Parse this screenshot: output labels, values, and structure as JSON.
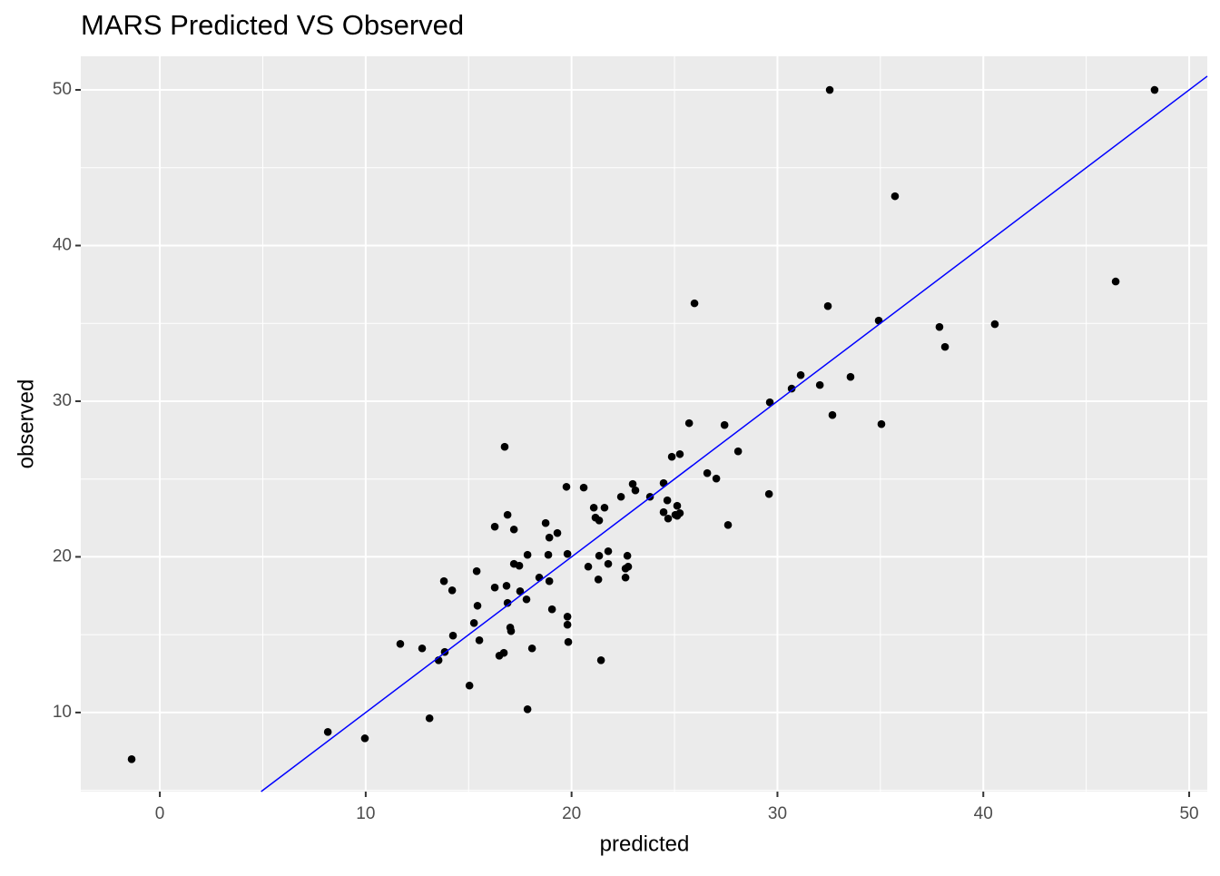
{
  "chart_data": {
    "type": "scatter",
    "title": "MARS Predicted VS Observed",
    "x_label": "predicted",
    "y_label": "observed",
    "series": [
      {
        "color": "#000000",
        "x": [
          -1.37,
          8.16,
          9.96,
          11.68,
          12.74,
          13.1,
          13.54,
          13.84,
          13.8,
          14.2,
          14.24,
          15.04,
          15.26,
          15.39,
          15.43,
          15.52,
          16.27,
          16.27,
          16.49,
          16.71,
          16.75,
          16.84,
          16.89,
          16.89,
          17.02,
          17.06,
          17.2,
          17.2,
          17.46,
          17.5,
          17.81,
          17.86,
          17.86,
          18.08,
          18.43,
          18.74,
          18.87,
          18.92,
          18.92,
          19.05,
          19.31,
          19.75,
          19.8,
          19.8,
          19.8,
          19.84,
          20.59,
          20.81,
          21.08,
          21.16,
          21.34,
          21.34,
          21.3,
          21.43,
          21.6,
          21.78,
          21.78,
          22.4,
          22.62,
          22.62,
          22.71,
          22.75,
          22.97,
          23.1,
          23.81,
          24.47,
          24.47,
          24.65,
          24.69,
          24.87,
          25.04,
          25.13,
          25.13,
          25.26,
          25.26,
          25.71,
          25.97,
          26.59,
          27.03,
          27.43,
          27.6,
          28.09,
          29.59,
          29.63,
          30.69,
          31.13,
          32.06,
          32.45,
          32.54,
          32.67,
          33.55,
          34.92,
          35.05,
          35.71,
          37.87,
          38.14,
          40.56,
          46.43,
          48.32
        ],
        "values": [
          7.0,
          8.75,
          8.34,
          14.41,
          14.12,
          9.63,
          13.36,
          13.89,
          18.44,
          17.85,
          14.94,
          11.73,
          15.75,
          19.08,
          16.86,
          14.64,
          21.94,
          18.03,
          13.65,
          13.83,
          27.07,
          18.14,
          22.7,
          17.04,
          15.46,
          15.23,
          21.76,
          19.55,
          19.43,
          17.79,
          17.27,
          20.13,
          10.21,
          14.12,
          18.67,
          22.17,
          20.13,
          21.24,
          18.44,
          16.63,
          21.53,
          24.5,
          20.19,
          16.16,
          15.64,
          14.53,
          24.45,
          19.37,
          23.16,
          22.52,
          22.34,
          20.07,
          18.55,
          13.36,
          23.16,
          20.36,
          19.55,
          23.86,
          19.25,
          18.67,
          20.07,
          19.37,
          24.68,
          24.27,
          23.86,
          24.74,
          22.87,
          23.63,
          22.46,
          26.43,
          22.7,
          23.28,
          22.64,
          22.81,
          26.6,
          28.59,
          36.29,
          25.38,
          25.03,
          28.47,
          22.05,
          26.78,
          24.04,
          29.93,
          30.81,
          31.68,
          31.04,
          36.11,
          50.0,
          29.11,
          31.56,
          35.18,
          28.53,
          43.17,
          34.77,
          33.49,
          34.95,
          37.69,
          50.0
        ]
      }
    ],
    "reference_line": {
      "slope": 1,
      "intercept": 0,
      "color": "#0000ff"
    },
    "xlim": [
      -3.84,
      50.88
    ],
    "ylim": [
      4.92,
      52.16
    ],
    "xticks": [
      0,
      10,
      20,
      30,
      40,
      50
    ],
    "yticks": [
      10,
      20,
      30,
      40,
      50
    ],
    "grid": true,
    "minor_grid": true
  }
}
